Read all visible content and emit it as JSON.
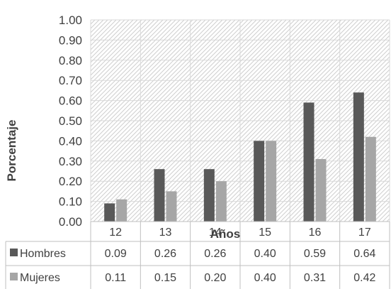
{
  "chart_data": {
    "type": "bar",
    "xlabel": "Años",
    "ylabel": "Porcentaje",
    "categories": [
      "12",
      "13",
      "14",
      "15",
      "16",
      "17"
    ],
    "ylim": [
      0,
      1.0
    ],
    "yticks": [
      "0.00",
      "0.10",
      "0.20",
      "0.30",
      "0.40",
      "0.50",
      "0.60",
      "0.70",
      "0.80",
      "0.90",
      "1.00"
    ],
    "series": [
      {
        "name": "Hombres",
        "values": [
          0.09,
          0.26,
          0.26,
          0.4,
          0.59,
          0.64
        ],
        "labels": [
          "0.09",
          "0.26",
          "0.26",
          "0.40",
          "0.59",
          "0.64"
        ],
        "color": "#595959"
      },
      {
        "name": "Mujeres",
        "values": [
          0.11,
          0.15,
          0.2,
          0.4,
          0.31,
          0.42
        ],
        "labels": [
          "0.11",
          "0.15",
          "0.20",
          "0.40",
          "0.31",
          "0.42"
        ],
        "color": "#a6a6a6"
      }
    ],
    "grid": true,
    "legend": "data-table",
    "plot_pattern": "diagonal-hatch"
  }
}
